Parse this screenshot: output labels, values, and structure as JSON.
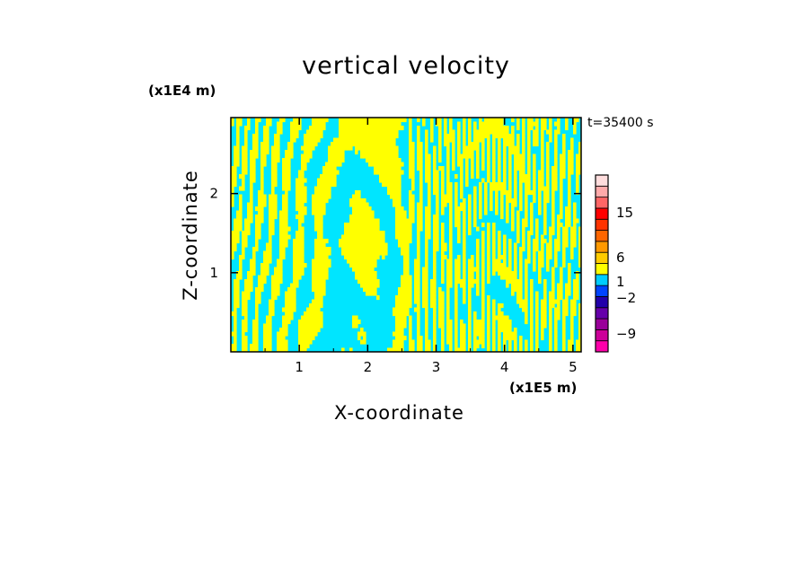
{
  "chart_data": {
    "type": "heatmap",
    "title": "vertical velocity",
    "time_label": "t=35400 s",
    "xlabel": "X-coordinate",
    "ylabel": "Z-coordinate",
    "x_unit": "(x1E5 m)",
    "z_unit": "(x1E4 m)",
    "xlim": [
      0,
      5.12
    ],
    "zlim": [
      0,
      2.96
    ],
    "x_ticks": [
      "1",
      "2",
      "3",
      "4",
      "5"
    ],
    "z_ticks": [
      "1",
      "2"
    ],
    "field_colors": {
      "negative": "#00e5ff",
      "positive": "#ffff00"
    },
    "colorbar": {
      "colors": [
        "#ff00aa",
        "#cc0099",
        "#990099",
        "#6600aa",
        "#2200aa",
        "#0044ff",
        "#00ccff",
        "#ffff00",
        "#ffcc00",
        "#ff9900",
        "#ff6600",
        "#ff3300",
        "#ff0000",
        "#ff6666",
        "#ffaaaa",
        "#ffdddd"
      ],
      "labels": [
        {
          "text": "15"
        },
        {
          "text": "6"
        },
        {
          "text": "1"
        },
        {
          "text": "−2"
        },
        {
          "text": "−9"
        }
      ]
    }
  }
}
